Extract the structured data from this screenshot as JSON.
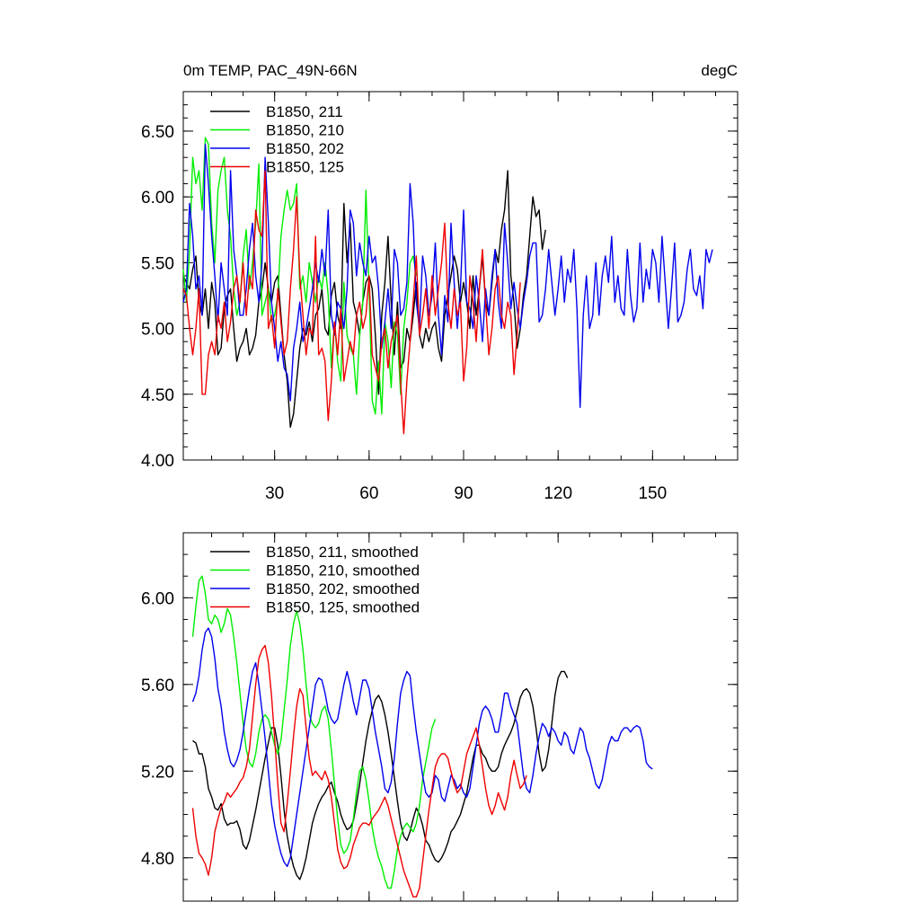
{
  "header": {
    "title": "0m TEMP, PAC_49N-66N",
    "units": "degC"
  },
  "chart_data": [
    {
      "type": "line",
      "panel": "top",
      "xlim": [
        1,
        177
      ],
      "ylim": [
        4.0,
        6.8
      ],
      "yticks": [
        4.0,
        4.5,
        5.0,
        5.5,
        6.0,
        6.5
      ],
      "ytick_labels": [
        "4.00",
        "4.50",
        "5.00",
        "5.50",
        "6.00",
        "6.50"
      ],
      "xticks": [
        30,
        60,
        90,
        120,
        150
      ],
      "xtick_labels": [
        "30",
        "60",
        "90",
        "120",
        "150"
      ],
      "legend_position": "top-left",
      "series": [
        {
          "name": "B1850, 211",
          "color": "#000000",
          "x_start": 1,
          "values": [
            5.4,
            5.35,
            5.3,
            5.45,
            5.55,
            5.2,
            5.1,
            5.3,
            5.0,
            5.35,
            5.2,
            4.8,
            4.85,
            5.15,
            5.25,
            5.3,
            5.0,
            4.75,
            4.85,
            4.9,
            5.0,
            4.8,
            4.85,
            4.95,
            5.2,
            5.3,
            5.5,
            5.3,
            5.2,
            5.35,
            5.4,
            5.1,
            4.8,
            4.6,
            4.25,
            4.35,
            4.6,
            4.85,
            5.0,
            4.95,
            5.05,
            4.9,
            5.1,
            5.15,
            5.3,
            5.0,
            4.95,
            5.25,
            5.35,
            5.1,
            5.0,
            5.95,
            5.5,
            5.8,
            5.2,
            5.1,
            4.95,
            5.2,
            5.35,
            5.4,
            5.3,
            4.95,
            4.5,
            5.1,
            5.35,
            5.7,
            5.2,
            4.8,
            5.2,
            4.7,
            4.75,
            5.0,
            4.9,
            5.1,
            5.35,
            4.95,
            4.85,
            5.0,
            4.9,
            5.0,
            5.05,
            4.85,
            4.75,
            5.1,
            5.25,
            5.4,
            5.55,
            5.45,
            5.2,
            5.35,
            5.2,
            5.0,
            5.4,
            5.1,
            5.3,
            5.55,
            5.2,
            5.1,
            5.35,
            5.6,
            5.5,
            5.75,
            5.9,
            6.2,
            5.4,
            5.2,
            4.85,
            5.0,
            5.25,
            5.4,
            5.7,
            6.0,
            5.85,
            5.9,
            5.6,
            5.75
          ]
        },
        {
          "name": "B1850, 210",
          "color": "#00ee00",
          "x_start": 1,
          "values": [
            5.45,
            5.2,
            5.6,
            6.3,
            6.1,
            6.2,
            5.9,
            6.45,
            6.4,
            5.8,
            5.5,
            6.05,
            6.2,
            6.3,
            5.9,
            5.7,
            5.3,
            5.1,
            5.2,
            5.55,
            5.75,
            5.3,
            5.5,
            5.8,
            6.25,
            5.1,
            5.2,
            5.3,
            5.05,
            5.1,
            5.25,
            5.7,
            5.9,
            6.05,
            5.9,
            5.95,
            6.1,
            5.3,
            5.4,
            5.2,
            5.5,
            5.35,
            5.2,
            5.4,
            5.3,
            5.5,
            5.25,
            4.7,
            5.05,
            4.75,
            4.6,
            5.35,
            4.95,
            4.85,
            4.8,
            4.5,
            4.95,
            5.2,
            6.05,
            5.3,
            4.45,
            4.35,
            4.75,
            4.35,
            5.05,
            4.9,
            4.55,
            5.05,
            4.95,
            4.5,
            5.0,
            5.2,
            5.5,
            5.55,
            5.4
          ]
        },
        {
          "name": "B1850, 202",
          "color": "#0000ee",
          "x_start": 1,
          "values": [
            5.2,
            5.3,
            5.95,
            5.7,
            5.3,
            5.4,
            5.1,
            6.4,
            6.1,
            5.7,
            5.4,
            5.05,
            5.5,
            5.3,
            5.1,
            6.2,
            5.6,
            5.4,
            5.1,
            5.1,
            5.3,
            5.6,
            5.8,
            5.4,
            5.2,
            5.5,
            6.3,
            5.8,
            5.2,
            5.0,
            4.75,
            4.9,
            4.7,
            4.65,
            4.45,
            4.85,
            5.0,
            5.2,
            4.9,
            5.0,
            5.15,
            5.3,
            5.5,
            5.35,
            5.6,
            5.4,
            5.9,
            5.1,
            4.95,
            5.2,
            5.15,
            5.0,
            5.3,
            5.9,
            5.8,
            5.4,
            5.65,
            5.5,
            5.4,
            5.7,
            5.5,
            5.55,
            5.3,
            4.85,
            5.05,
            5.3,
            5.0,
            5.6,
            5.5,
            5.1,
            5.15,
            5.35,
            6.1,
            5.8,
            5.2,
            5.0,
            5.55,
            5.4,
            5.1,
            5.25,
            5.65,
            5.1,
            4.8,
            5.25,
            5.05,
            5.8,
            5.35,
            5.0,
            5.3,
            5.9,
            5.2,
            5.15,
            5.0,
            5.4,
            5.2,
            4.9,
            5.3,
            5.1,
            5.4,
            5.6,
            5.2,
            5.0,
            5.8,
            5.5,
            5.15,
            5.35,
            5.15,
            5.0,
            5.2,
            5.35,
            5.55,
            5.65,
            5.65,
            5.05,
            5.1,
            5.3,
            5.6,
            5.35,
            5.1,
            5.3,
            5.55,
            5.2,
            5.45,
            5.35,
            5.6,
            5.15,
            4.4,
            5.1,
            5.4,
            5.0,
            5.1,
            5.5,
            5.1,
            5.4,
            5.55,
            5.35,
            5.7,
            5.2,
            5.4,
            5.15,
            5.1,
            5.6,
            5.25,
            5.05,
            5.15,
            5.65,
            5.2,
            5.45,
            5.3,
            5.6,
            5.5,
            5.2,
            5.7,
            5.35,
            5.0,
            5.3,
            5.65,
            5.05,
            5.1,
            5.2,
            5.45,
            5.6,
            5.3,
            5.25,
            5.4,
            5.15,
            5.6,
            5.5,
            5.6
          ]
        },
        {
          "name": "B1850, 125",
          "color": "#ee0000",
          "x_start": 1,
          "values": [
            5.3,
            5.25,
            5.0,
            4.8,
            5.0,
            5.3,
            4.5,
            4.5,
            4.8,
            4.9,
            4.8,
            5.1,
            5.0,
            5.2,
            4.9,
            5.05,
            5.3,
            5.4,
            5.2,
            5.5,
            5.1,
            5.4,
            5.3,
            5.9,
            5.75,
            5.7,
            6.2,
            5.0,
            5.1,
            4.85,
            5.3,
            5.05,
            4.8,
            4.9,
            5.3,
            5.6,
            6.0,
            5.4,
            5.1,
            4.8,
            5.0,
            4.95,
            5.7,
            4.8,
            4.85,
            4.75,
            4.3,
            4.6,
            5.05,
            4.8,
            5.15,
            4.6,
            4.75,
            4.9,
            4.8,
            5.1,
            5.2,
            5.0,
            5.1,
            5.4,
            4.8,
            4.7,
            4.6,
            4.9,
            5.0,
            4.7,
            4.9,
            5.0,
            5.1,
            4.6,
            4.2,
            4.6,
            4.9,
            5.2,
            5.55,
            4.95,
            5.1,
            5.3,
            5.0,
            5.4,
            5.1,
            5.3,
            5.5,
            5.8,
            5.2,
            5.0,
            5.3,
            5.1,
            5.2,
            4.6,
            4.85,
            5.4,
            5.2,
            4.9,
            5.3,
            5.6,
            5.2,
            4.8,
            5.0,
            5.3,
            5.4,
            5.1,
            5.0,
            5.2,
            5.1,
            4.65,
            4.95,
            5.35
          ]
        }
      ]
    },
    {
      "type": "line",
      "panel": "bottom",
      "xlim": [
        1,
        177
      ],
      "ylim": [
        4.6,
        6.3
      ],
      "yticks": [
        4.8,
        5.2,
        5.6,
        6.0
      ],
      "ytick_labels": [
        "4.80",
        "5.20",
        "5.60",
        "6.00"
      ],
      "xticks": [
        30,
        60,
        90,
        120,
        150
      ],
      "xtick_labels": [],
      "legend_position": "top-left",
      "series": [
        {
          "name": "B1850, 211, smoothed",
          "color": "#000000",
          "x_start": 4,
          "values": [
            5.34,
            5.33,
            5.28,
            5.28,
            5.22,
            5.12,
            5.08,
            5.03,
            5.02,
            5.05,
            4.98,
            4.95,
            4.96,
            4.96,
            4.97,
            4.93,
            4.86,
            4.84,
            4.88,
            4.95,
            5.02,
            5.1,
            5.18,
            5.26,
            5.33,
            5.4,
            5.4,
            5.32,
            5.18,
            5.02,
            4.9,
            4.82,
            4.76,
            4.72,
            4.7,
            4.74,
            4.8,
            4.88,
            4.96,
            5.01,
            5.05,
            5.08,
            5.1,
            5.13,
            5.15,
            5.1,
            5.06,
            5.0,
            4.96,
            4.93,
            4.94,
            4.97,
            5.05,
            5.14,
            5.24,
            5.34,
            5.42,
            5.48,
            5.53,
            5.55,
            5.52,
            5.46,
            5.38,
            5.28,
            5.17,
            5.06,
            4.96,
            4.9,
            4.88,
            4.92,
            4.98,
            5.03,
            5.0,
            4.95,
            4.88,
            4.86,
            4.82,
            4.79,
            4.78,
            4.8,
            4.83,
            4.87,
            4.92,
            4.94,
            4.97,
            5.0,
            5.05,
            5.1,
            5.18,
            5.26,
            5.32,
            5.32,
            5.28,
            5.26,
            5.22,
            5.2,
            5.2,
            5.22,
            5.28,
            5.32,
            5.35,
            5.38,
            5.42,
            5.48,
            5.54,
            5.57,
            5.58,
            5.56,
            5.5,
            5.4,
            5.28,
            5.2,
            5.22,
            5.3,
            5.42,
            5.55,
            5.63,
            5.66,
            5.66,
            5.63
          ]
        },
        {
          "name": "B1850, 210, smoothed",
          "color": "#00ee00",
          "x_start": 4,
          "values": [
            5.82,
            5.96,
            6.08,
            6.1,
            6.02,
            5.9,
            5.88,
            5.92,
            5.9,
            5.84,
            5.88,
            5.95,
            5.92,
            5.82,
            5.7,
            5.56,
            5.42,
            5.3,
            5.24,
            5.22,
            5.28,
            5.38,
            5.44,
            5.46,
            5.44,
            5.38,
            5.32,
            5.28,
            5.34,
            5.48,
            5.62,
            5.78,
            5.88,
            5.94,
            5.88,
            5.76,
            5.6,
            5.46,
            5.42,
            5.4,
            5.42,
            5.48,
            5.5,
            5.44,
            5.3,
            5.14,
            4.98,
            4.86,
            4.82,
            4.84,
            4.88,
            4.98,
            5.1,
            5.2,
            5.22,
            5.16,
            5.06,
            4.94,
            4.86,
            4.8,
            4.76,
            4.7,
            4.66,
            4.66,
            4.74,
            4.84,
            4.9,
            4.94,
            4.96,
            4.94,
            4.92,
            4.96,
            5.04,
            5.16,
            5.24,
            5.32,
            5.4,
            5.44
          ]
        },
        {
          "name": "B1850, 202, smoothed",
          "color": "#0000ee",
          "x_start": 4,
          "values": [
            5.52,
            5.56,
            5.64,
            5.76,
            5.84,
            5.86,
            5.82,
            5.72,
            5.58,
            5.5,
            5.38,
            5.3,
            5.24,
            5.22,
            5.25,
            5.3,
            5.38,
            5.48,
            5.58,
            5.66,
            5.7,
            5.6,
            5.48,
            5.35,
            5.2,
            5.05,
            4.95,
            4.88,
            4.82,
            4.78,
            4.76,
            4.8,
            4.9,
            5.0,
            5.1,
            5.2,
            5.3,
            5.4,
            5.5,
            5.6,
            5.63,
            5.62,
            5.56,
            5.48,
            5.44,
            5.42,
            5.44,
            5.52,
            5.6,
            5.66,
            5.6,
            5.52,
            5.46,
            5.54,
            5.62,
            5.62,
            5.58,
            5.48,
            5.38,
            5.3,
            5.22,
            5.12,
            5.1,
            5.15,
            5.26,
            5.42,
            5.56,
            5.62,
            5.66,
            5.64,
            5.5,
            5.38,
            5.28,
            5.18,
            5.1,
            5.08,
            5.1,
            5.18,
            5.16,
            5.08,
            5.06,
            5.12,
            5.18,
            5.16,
            5.12,
            5.14,
            5.1,
            5.08,
            5.12,
            5.22,
            5.32,
            5.42,
            5.48,
            5.5,
            5.48,
            5.44,
            5.38,
            5.38,
            5.46,
            5.56,
            5.56,
            5.5,
            5.46,
            5.42,
            5.3,
            5.18,
            5.12,
            5.1,
            5.18,
            5.28,
            5.36,
            5.42,
            5.4,
            5.36,
            5.4,
            5.38,
            5.34,
            5.32,
            5.38,
            5.36,
            5.3,
            5.28,
            5.34,
            5.4,
            5.38,
            5.3,
            5.26,
            5.2,
            5.14,
            5.12,
            5.16,
            5.24,
            5.32,
            5.36,
            5.34,
            5.34,
            5.38,
            5.4,
            5.4,
            5.38,
            5.4,
            5.41,
            5.4,
            5.34,
            5.24,
            5.22,
            5.21
          ]
        },
        {
          "name": "B1850, 125, smoothed",
          "color": "#ee0000",
          "x_start": 4,
          "values": [
            5.03,
            4.9,
            4.82,
            4.8,
            4.77,
            4.72,
            4.8,
            4.92,
            4.98,
            5.03,
            5.06,
            5.1,
            5.08,
            5.1,
            5.12,
            5.15,
            5.17,
            5.22,
            5.3,
            5.45,
            5.6,
            5.72,
            5.76,
            5.78,
            5.7,
            5.55,
            5.35,
            5.14,
            4.96,
            4.92,
            5.05,
            5.2,
            5.36,
            5.5,
            5.58,
            5.55,
            5.4,
            5.26,
            5.18,
            5.2,
            5.18,
            5.16,
            5.2,
            5.16,
            5.08,
            4.96,
            4.84,
            4.78,
            4.75,
            4.76,
            4.8,
            4.86,
            4.9,
            4.94,
            4.96,
            4.96,
            4.95,
            4.98,
            5.0,
            5.02,
            5.05,
            5.08,
            5.04,
            4.98,
            4.92,
            4.86,
            4.8,
            4.74,
            4.7,
            4.66,
            4.62,
            4.62,
            4.66,
            4.78,
            4.9,
            5.02,
            5.12,
            5.22,
            5.26,
            5.28,
            5.28,
            5.26,
            5.2,
            5.14,
            5.1,
            5.12,
            5.2,
            5.28,
            5.32,
            5.36,
            5.4,
            5.32,
            5.22,
            5.12,
            5.04,
            5.0,
            5.04,
            5.1,
            5.06,
            5.02,
            5.08,
            5.18,
            5.25,
            5.18,
            5.12,
            5.14,
            5.18
          ]
        }
      ]
    }
  ]
}
